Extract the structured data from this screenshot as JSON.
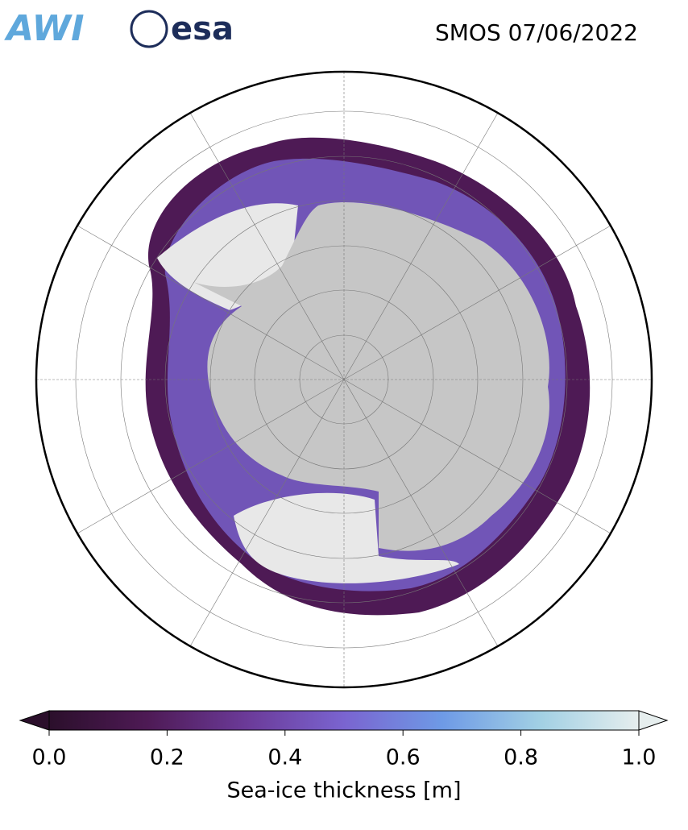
{
  "header": {
    "logos": [
      "AWI",
      "esa"
    ],
    "title": "SMOS 07/06/2022"
  },
  "colorbar": {
    "label": "Sea-ice thickness [m]",
    "lim": [
      0,
      1
    ],
    "ticks": [
      {
        "value": 0,
        "label": "0.0"
      },
      {
        "value": 0.2,
        "label": "0.2"
      },
      {
        "value": 0.4,
        "label": "0.4"
      },
      {
        "value": 0.6,
        "label": "0.6"
      },
      {
        "value": 0.8,
        "label": "0.8"
      },
      {
        "value": 1,
        "label": "1.0"
      }
    ],
    "colormap": [
      "#2b0f2b",
      "#4e1a55",
      "#6b3a98",
      "#7a64d0",
      "#6e9ae6",
      "#a2d0e4",
      "#e6eeee"
    ],
    "extend": "both"
  }
}
